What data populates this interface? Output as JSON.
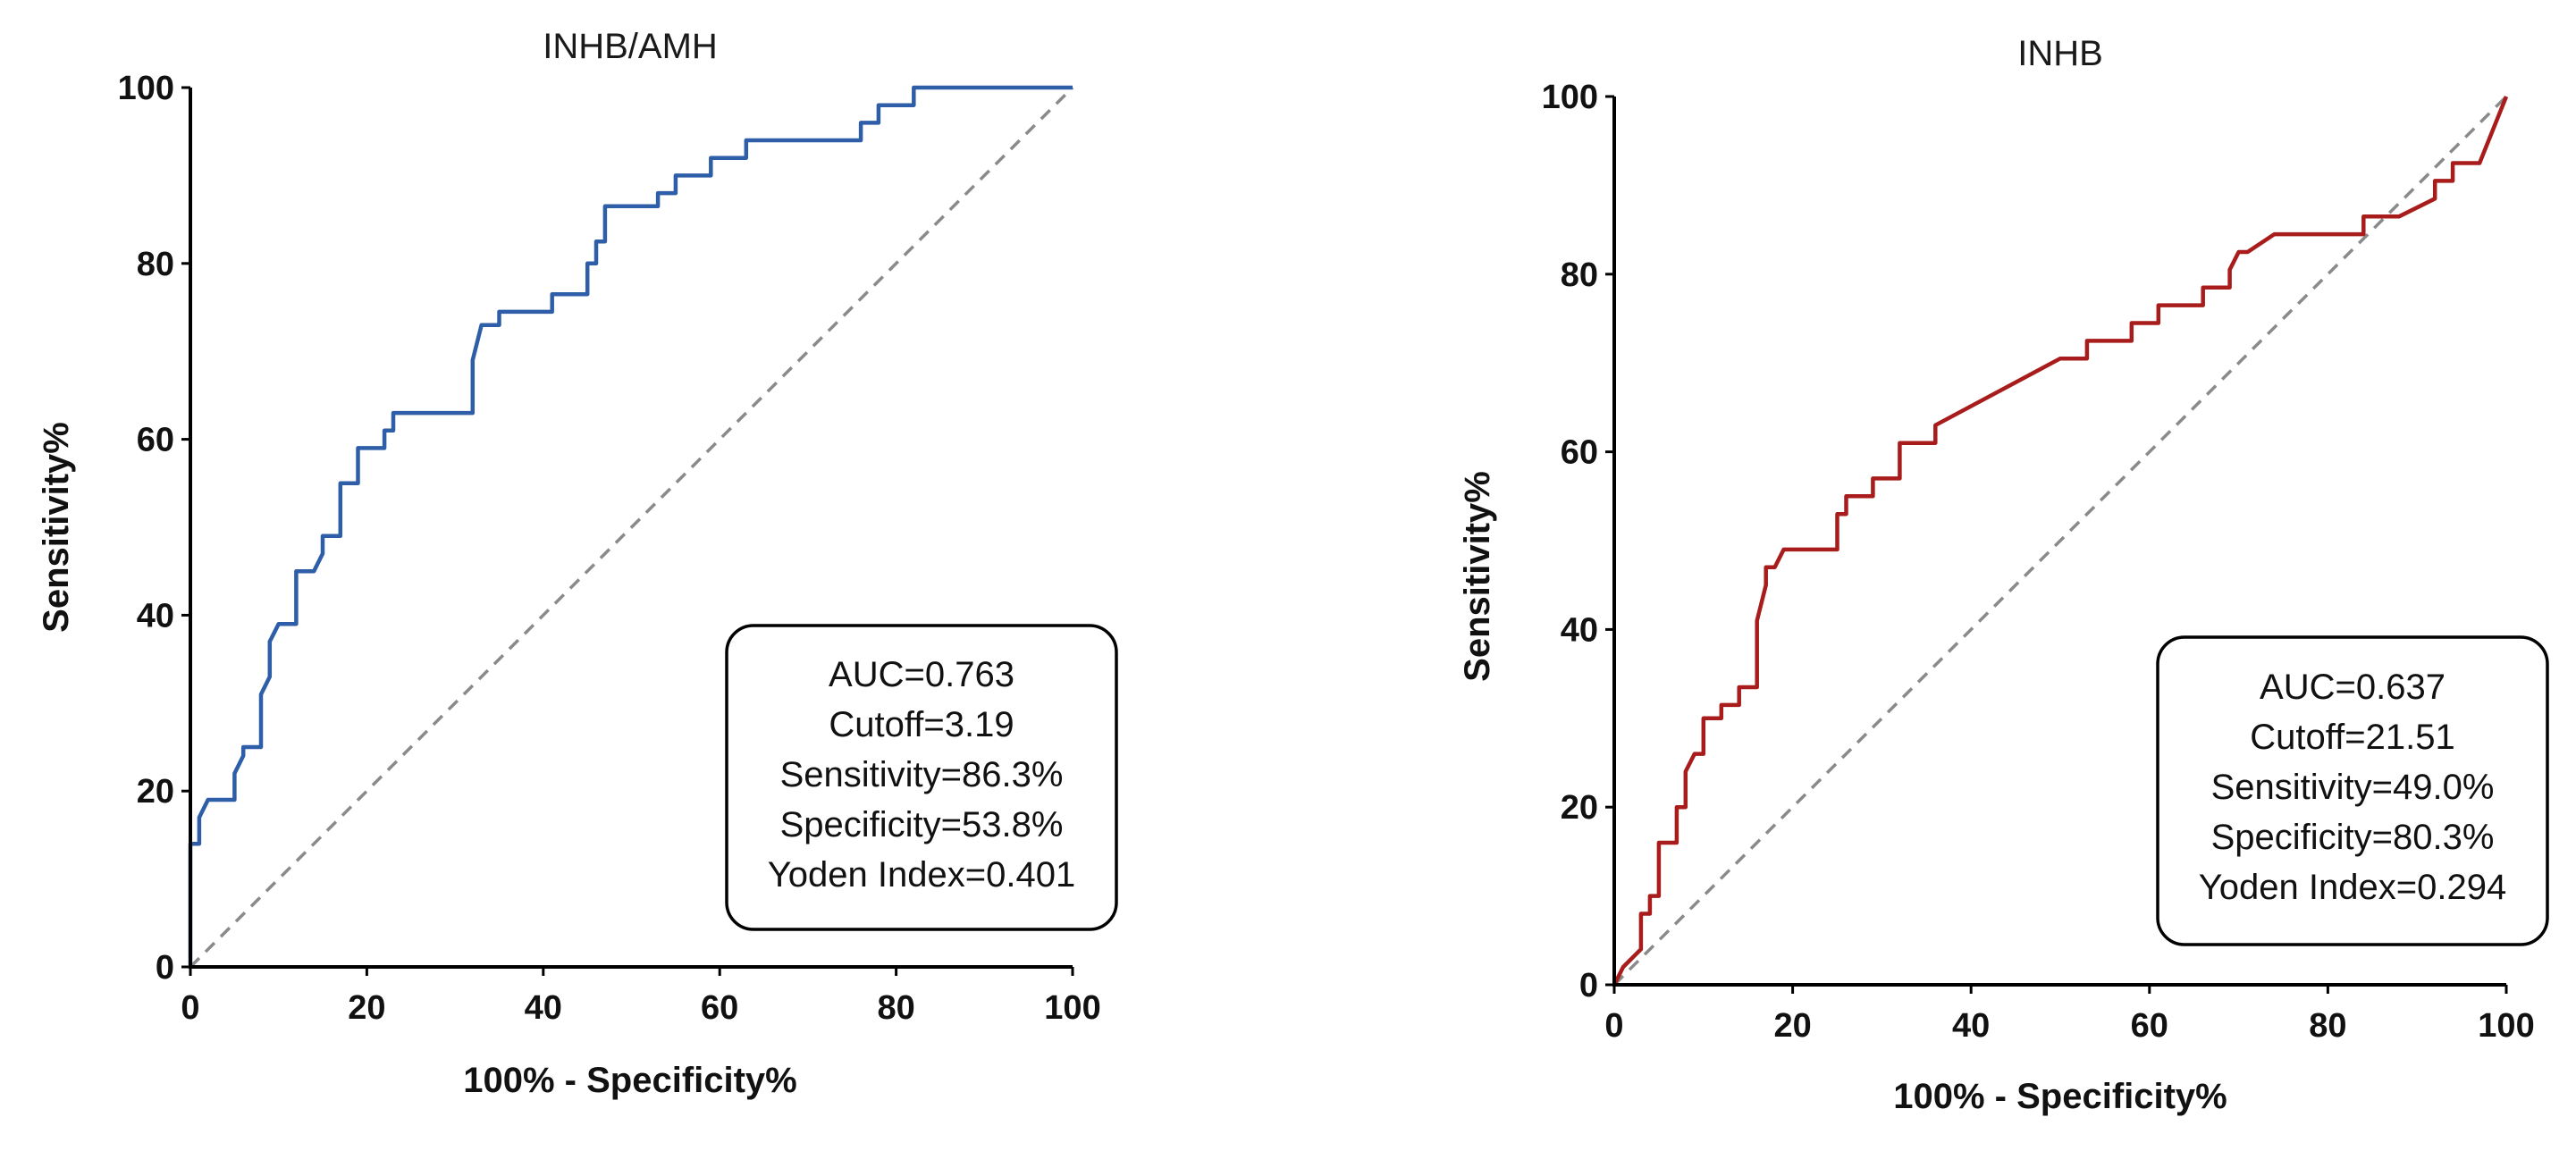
{
  "chart_data": [
    {
      "type": "line",
      "title": "INHB/AMH",
      "xlabel": "100% - Specificity%",
      "ylabel": "Sensitivity%",
      "xlim": [
        0,
        100
      ],
      "ylim": [
        0,
        100
      ],
      "xticks": [
        "0",
        "20",
        "40",
        "60",
        "80",
        "100"
      ],
      "yticks": [
        "0",
        "20",
        "40",
        "60",
        "80",
        "100"
      ],
      "grid": false,
      "color": "#2f5ea8",
      "series": [
        {
          "name": "ROC",
          "x": [
            0,
            0,
            1,
            1,
            2,
            5,
            5,
            6,
            6,
            8,
            8,
            9,
            9,
            10,
            12,
            12,
            14,
            15,
            15,
            17,
            17,
            19,
            19,
            22,
            22,
            23,
            23,
            32,
            32,
            33,
            35,
            35,
            41,
            41,
            45,
            45,
            46,
            46,
            47,
            47,
            53,
            53,
            55,
            55,
            59,
            59,
            63,
            63,
            76,
            76,
            78,
            78,
            82,
            82,
            100
          ],
          "y": [
            0,
            14,
            14,
            17,
            19,
            19,
            22,
            24,
            25,
            25,
            31,
            33,
            37,
            39,
            39,
            45,
            45,
            47,
            49,
            49,
            55,
            55,
            59,
            59,
            61,
            61,
            63,
            63,
            69,
            73,
            73,
            74.5,
            74.5,
            76.5,
            76.5,
            80,
            80,
            82.5,
            82.5,
            86.5,
            86.5,
            88,
            88,
            90,
            90,
            92,
            92,
            94,
            94,
            96,
            96,
            98,
            98,
            100,
            100
          ]
        },
        {
          "name": "Reference",
          "x": [
            0,
            100
          ],
          "y": [
            0,
            100
          ]
        }
      ],
      "stats": {
        "auc": "AUC=0.763",
        "cutoff": "Cutoff=3.19",
        "sensitivity": "Sensitivity=86.3%",
        "specificity": "Specificity=53.8%",
        "yoden": "Yoden Index=0.401"
      }
    },
    {
      "type": "line",
      "title": "INHB",
      "xlabel": "100% - Specificity%",
      "ylabel": "Sensitivity%",
      "xlim": [
        0,
        100
      ],
      "ylim": [
        0,
        100
      ],
      "xticks": [
        "0",
        "20",
        "40",
        "60",
        "80",
        "100"
      ],
      "yticks": [
        "0",
        "20",
        "40",
        "60",
        "80",
        "100"
      ],
      "grid": false,
      "color": "#a81c1c",
      "series": [
        {
          "name": "ROC",
          "x": [
            0,
            1,
            1,
            3,
            3,
            4,
            4,
            5,
            5,
            7,
            7,
            8,
            8,
            9,
            10,
            10,
            11,
            12,
            12,
            14,
            14,
            16,
            16,
            17,
            17,
            18,
            19,
            19,
            21,
            25,
            25,
            26,
            26,
            29,
            29,
            32,
            32,
            36,
            36,
            50,
            53,
            53,
            58,
            58,
            61,
            61,
            66,
            66,
            69,
            69,
            70,
            71,
            74,
            74,
            84,
            84,
            88,
            92,
            92,
            94,
            94,
            97,
            100
          ],
          "y": [
            0,
            2,
            2,
            4,
            8,
            8,
            10,
            10,
            16,
            16,
            20,
            20,
            24,
            26,
            26,
            30,
            30,
            30,
            31.5,
            31.5,
            33.5,
            33.5,
            41,
            45,
            47,
            47,
            49,
            49,
            49,
            49,
            53,
            53,
            55,
            55,
            57,
            57,
            61,
            61,
            63,
            70.5,
            70.5,
            72.5,
            72.5,
            74.5,
            74.5,
            76.5,
            76.5,
            78.5,
            78.5,
            80.5,
            82.5,
            82.5,
            84.5,
            84.5,
            84.5,
            86.5,
            86.5,
            88.5,
            90.5,
            90.5,
            92.5,
            92.5,
            100
          ]
        },
        {
          "name": "Reference",
          "x": [
            0,
            100
          ],
          "y": [
            0,
            100
          ]
        }
      ],
      "stats": {
        "auc": "AUC=0.637",
        "cutoff": "Cutoff=21.51",
        "sensitivity": "Sensitivity=49.0%",
        "specificity": "Specificity=80.3%",
        "yoden": "Yoden Index=0.294"
      }
    }
  ]
}
